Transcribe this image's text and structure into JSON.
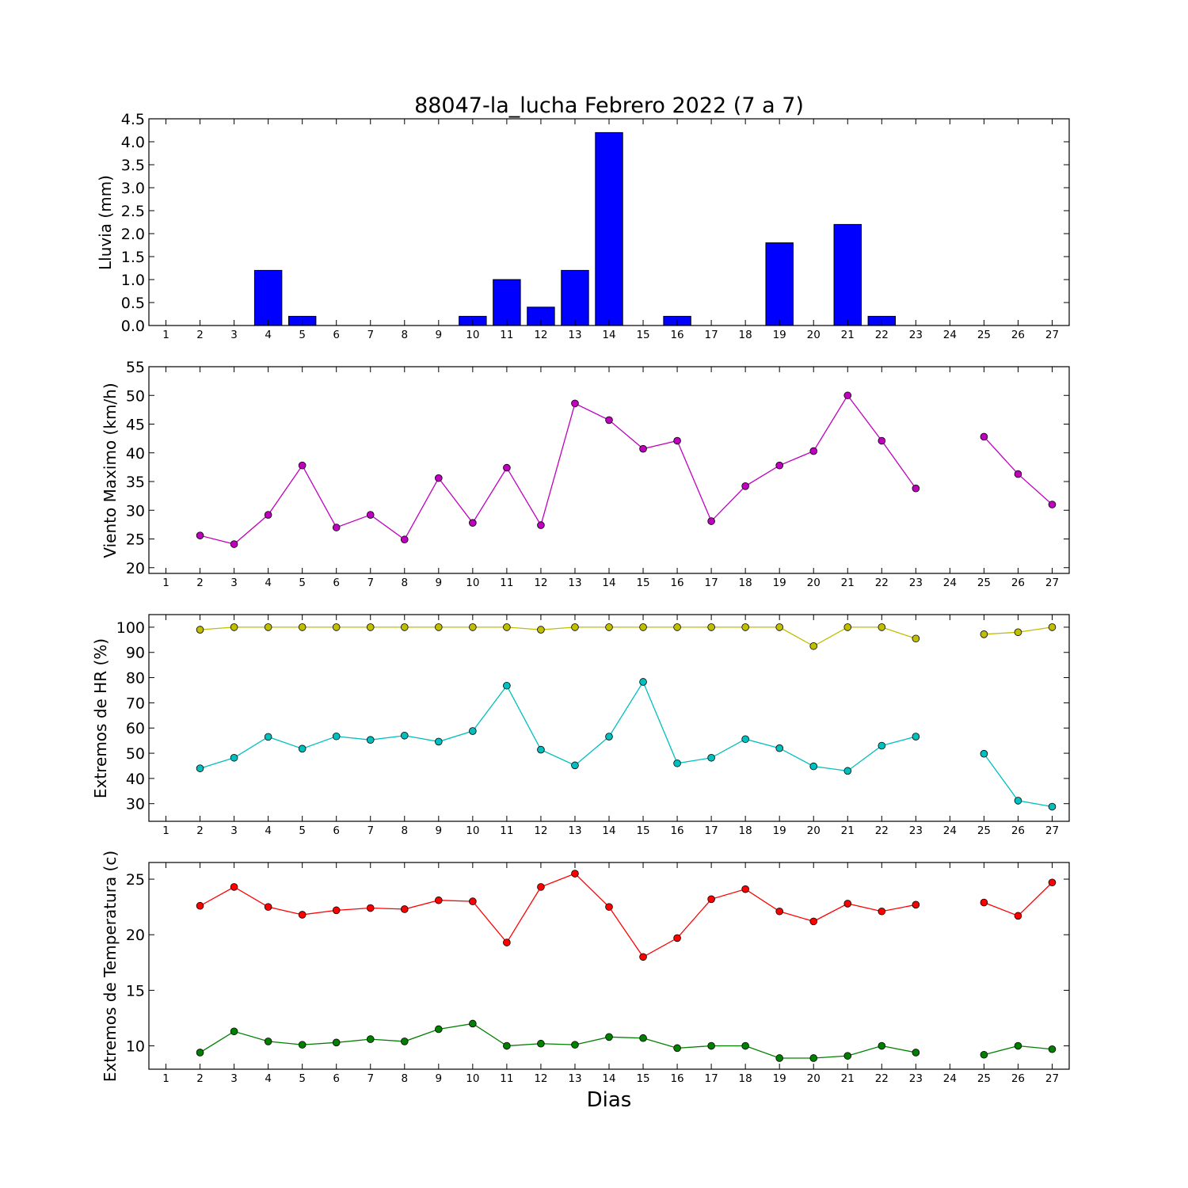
{
  "chart_data": {
    "title": "88047-la_lucha Febrero 2022  (7 a 7)",
    "xlabel": "Dias",
    "x": [
      1,
      2,
      3,
      4,
      5,
      6,
      7,
      8,
      9,
      10,
      11,
      12,
      13,
      14,
      15,
      16,
      17,
      18,
      19,
      20,
      21,
      22,
      23,
      24,
      25,
      26,
      27
    ],
    "xlim": [
      0.5,
      27.5
    ],
    "panels": [
      {
        "id": "lluvia",
        "type": "bar",
        "ylabel": "Lluvia (mm)",
        "ylim": [
          0,
          4.5
        ],
        "yticks": [
          "0.0",
          "0.5",
          "1.0",
          "1.5",
          "2.0",
          "2.5",
          "3.0",
          "3.5",
          "4.0",
          "4.5"
        ],
        "series": [
          {
            "color": "#0000ff",
            "values": [
              0,
              0,
              0,
              1.2,
              0.2,
              0,
              0,
              0,
              0,
              0.2,
              1.0,
              0.4,
              1.2,
              4.2,
              0,
              0.2,
              0,
              0,
              1.8,
              0,
              2.2,
              0.2,
              0,
              0,
              0,
              0,
              0
            ]
          }
        ]
      },
      {
        "id": "viento",
        "type": "line",
        "ylabel": "Viento Maximo (km/h)",
        "ylim": [
          19,
          55
        ],
        "yticks": [
          "20",
          "25",
          "30",
          "35",
          "40",
          "45",
          "50",
          "55"
        ],
        "series": [
          {
            "color": "#bf00bf",
            "values": [
              null,
              25.6,
              24.1,
              29.2,
              37.8,
              27.0,
              29.2,
              24.9,
              35.6,
              27.8,
              37.4,
              27.4,
              48.6,
              45.7,
              40.7,
              42.1,
              28.1,
              34.2,
              37.8,
              40.3,
              50.0,
              42.1,
              33.8,
              null,
              42.8,
              36.3,
              31.0
            ]
          }
        ]
      },
      {
        "id": "hr",
        "type": "line",
        "ylabel": "Extremos de HR (%)",
        "ylim": [
          23,
          105
        ],
        "yticks": [
          "30",
          "40",
          "50",
          "60",
          "70",
          "80",
          "90",
          "100"
        ],
        "series": [
          {
            "color": "#bfbf00",
            "values": [
              null,
              99,
              100,
              100,
              100,
              100,
              100,
              100,
              100,
              100,
              100,
              99,
              100,
              100,
              100,
              100,
              100,
              100,
              100,
              92.5,
              100,
              100,
              95.5,
              null,
              97.2,
              98,
              100
            ]
          },
          {
            "color": "#00bfbf",
            "values": [
              null,
              44,
              48.2,
              56.5,
              51.8,
              56.7,
              55.3,
              57,
              54.6,
              58.8,
              76.8,
              51.4,
              45.2,
              56.6,
              78.3,
              46,
              48.2,
              55.6,
              52,
              44.8,
              43,
              53,
              56.6,
              null,
              49.8,
              31.2,
              28.8
            ]
          }
        ]
      },
      {
        "id": "temp",
        "type": "line",
        "ylabel": "Extremos de Temperatura (c)",
        "ylim": [
          7.9,
          26.5
        ],
        "yticks": [
          "10",
          "15",
          "20",
          "25"
        ],
        "series": [
          {
            "color": "#ff0000",
            "values": [
              null,
              22.6,
              24.3,
              22.5,
              21.8,
              22.2,
              22.4,
              22.3,
              23.1,
              23.0,
              19.3,
              24.3,
              25.5,
              22.5,
              18.0,
              19.7,
              23.2,
              24.1,
              22.1,
              21.2,
              22.8,
              22.1,
              22.7,
              null,
              22.9,
              21.7,
              24.7
            ]
          },
          {
            "color": "#008000",
            "values": [
              null,
              9.4,
              11.3,
              10.4,
              10.1,
              10.3,
              10.6,
              10.4,
              11.5,
              12.0,
              10.0,
              10.2,
              10.1,
              10.8,
              10.7,
              9.8,
              10.0,
              10.0,
              8.9,
              8.9,
              9.1,
              10.0,
              9.4,
              null,
              9.2,
              10.0,
              9.7
            ]
          }
        ]
      }
    ]
  }
}
